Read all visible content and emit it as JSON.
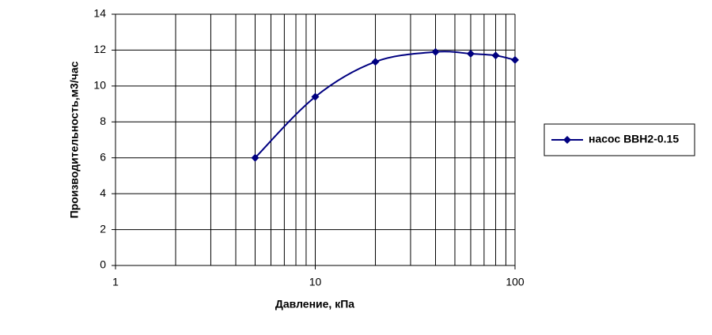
{
  "chart_data": {
    "type": "line",
    "x_label": "Давление, кПа",
    "y_label": "Производительность,м3/час",
    "x": [
      5,
      10,
      20,
      40,
      60,
      80,
      100
    ],
    "series": [
      {
        "name": "насос ВВН2-0.15",
        "color": "#000080",
        "values": [
          6,
          9.4,
          11.35,
          11.9,
          11.8,
          11.7,
          11.45
        ]
      }
    ],
    "x_log": true,
    "xlim": [
      1,
      100
    ],
    "xticks": [
      1,
      10,
      100
    ],
    "x_minor_grid": [
      2,
      3,
      4,
      5,
      6,
      7,
      8,
      9,
      20,
      30,
      40,
      50,
      60,
      70,
      80,
      90
    ],
    "ylim": [
      0,
      14
    ],
    "yticks": [
      0,
      2,
      4,
      6,
      8,
      10,
      12,
      14
    ],
    "grid": true,
    "legend": "right"
  }
}
